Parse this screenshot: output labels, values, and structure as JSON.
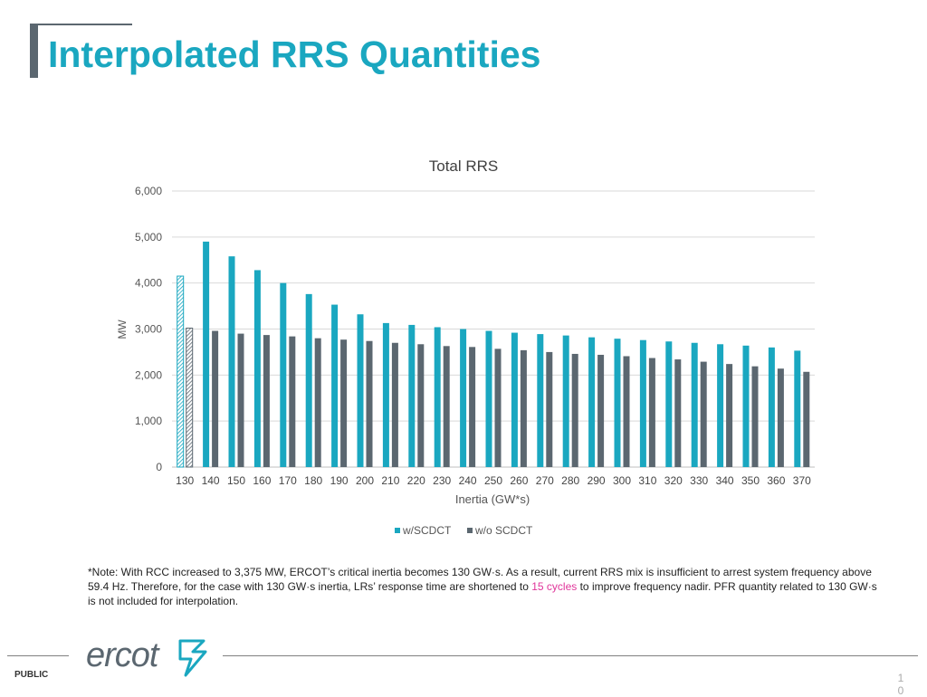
{
  "slide": {
    "title": "Interpolated RRS Quantities",
    "footer_label": "PUBLIC",
    "page_number": "10",
    "logo_text": "ercot"
  },
  "note": {
    "part1": "*Note: With RCC increased to 3,375 MW, ERCOT’s critical inertia becomes 130 GW·s. As a result, current RRS mix is insufficient to arrest system frequency above 59.4 Hz. Therefore, for the case with 130 GW·s inertia, LRs’ response time are shortened to ",
    "highlight": "15 cycles",
    "part2": " to improve frequency nadir. PFR quantity related to 130 GW·s is not included for interpolation."
  },
  "colors": {
    "title": "#1aa7c0",
    "series_scdct": "#1aa7c0",
    "series_no_scdct": "#5b6770",
    "highlight": "#e0359a",
    "grid": "#d9d9d9"
  },
  "chart_data": {
    "type": "bar",
    "title": "Total RRS",
    "xlabel": "Inertia (GW*s)",
    "ylabel": "MW",
    "ylim": [
      0,
      6000
    ],
    "yticks": [
      0,
      1000,
      2000,
      3000,
      4000,
      5000,
      6000
    ],
    "ytick_labels": [
      "0",
      "1,000",
      "2,000",
      "3,000",
      "4,000",
      "5,000",
      "6,000"
    ],
    "grid": true,
    "legend_position": "bottom",
    "categories": [
      "130",
      "140",
      "150",
      "160",
      "170",
      "180",
      "190",
      "200",
      "210",
      "220",
      "230",
      "240",
      "250",
      "260",
      "270",
      "280",
      "290",
      "300",
      "310",
      "320",
      "330",
      "340",
      "350",
      "360",
      "370"
    ],
    "series": [
      {
        "name": "w/SCDCT",
        "color": "#1aa7c0",
        "values": [
          4150,
          4900,
          4580,
          4280,
          4000,
          3760,
          3530,
          3320,
          3130,
          3090,
          3040,
          3000,
          2960,
          2920,
          2890,
          2860,
          2820,
          2790,
          2760,
          2730,
          2700,
          2670,
          2640,
          2600,
          2530
        ]
      },
      {
        "name": "w/o SCDCT",
        "color": "#5b6770",
        "values": [
          3020,
          2960,
          2900,
          2870,
          2840,
          2800,
          2770,
          2740,
          2700,
          2670,
          2630,
          2610,
          2570,
          2540,
          2500,
          2460,
          2440,
          2410,
          2370,
          2340,
          2290,
          2240,
          2190,
          2140,
          2070
        ]
      }
    ],
    "hatched_category": "130"
  }
}
